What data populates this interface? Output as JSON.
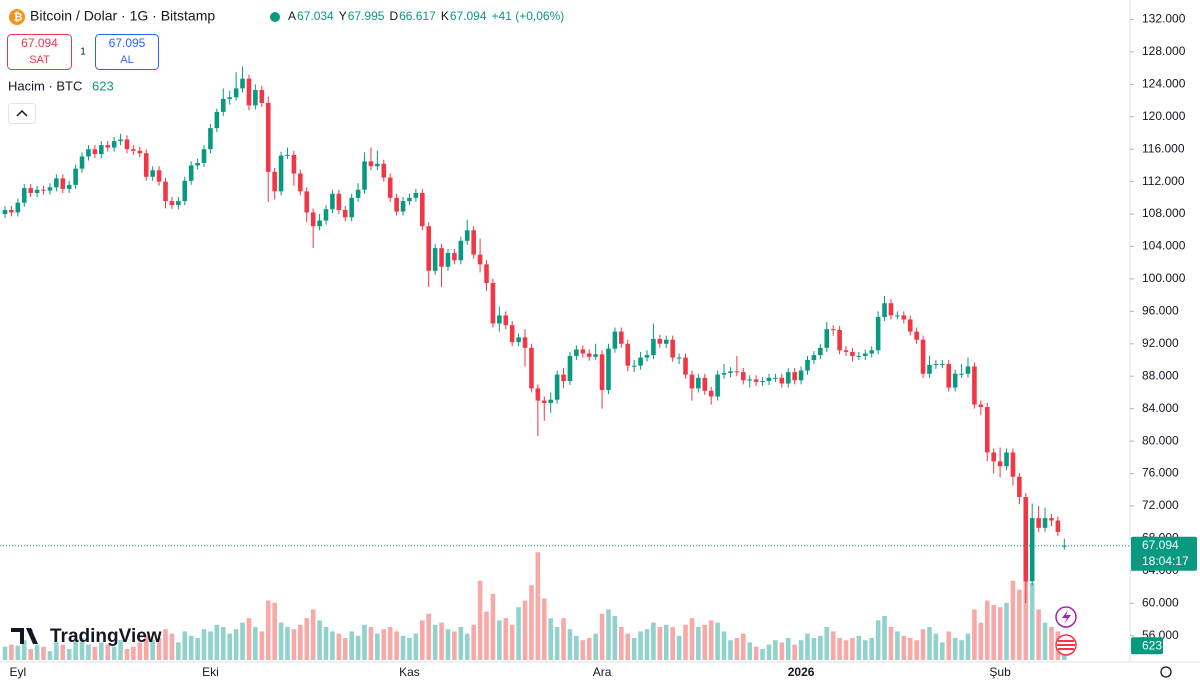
{
  "header": {
    "title": "Bitcoin / Dolar · 1G · Bitstamp",
    "ohlc": [
      {
        "key": "A",
        "value": "67.034"
      },
      {
        "key": "Y",
        "value": "67.995"
      },
      {
        "key": "D",
        "value": "66.617"
      },
      {
        "key": "K",
        "value": "67.094"
      }
    ],
    "change": "+41 (+0,06%)",
    "sell": {
      "price": "67.094",
      "label": "SAT"
    },
    "spread": "1",
    "buy": {
      "price": "67.095",
      "label": "AL"
    },
    "volume_label": "Hacim · BTC",
    "volume_value": "623"
  },
  "branding": "TradingView",
  "chart_data": {
    "type": "candlestick",
    "open": [
      108000,
      108500,
      108200,
      109400,
      111200,
      110600,
      111000,
      110900,
      111300,
      112400,
      111100,
      111600,
      113600,
      115100,
      116000,
      115400,
      116500,
      116200,
      117000,
      117200,
      116000,
      115800,
      115500,
      112600,
      113400,
      112000,
      109600,
      109100,
      109600,
      112100,
      114000,
      114300,
      116000,
      118600,
      120600,
      122200,
      122400,
      123500,
      124700,
      121400,
      123300,
      121700,
      113200,
      110800,
      115200,
      115300,
      113000,
      110800,
      108200,
      106500,
      107200,
      108600,
      110500,
      108500,
      107600,
      110000,
      111000,
      114500,
      113900,
      114200,
      112500,
      110000,
      108300,
      109600,
      110000,
      110600,
      106500,
      101000,
      103800,
      101500,
      103200,
      102300,
      104700,
      106000,
      103000,
      101800,
      99500,
      94500,
      95500,
      94300,
      92200,
      92800,
      91500,
      86500,
      85000,
      84700,
      85100,
      88200,
      87400,
      90500,
      91300,
      90800,
      90400,
      90700,
      86300,
      91400,
      93500,
      92000,
      89300,
      89300,
      90300,
      90600,
      92600,
      92000,
      92500,
      90300,
      90300,
      88200,
      86500,
      87800,
      86200,
      85500,
      88200,
      88400,
      88600,
      88500,
      87500,
      87600,
      87300,
      87400,
      87800,
      87800,
      87100,
      88500,
      87500,
      88700,
      90000,
      90600,
      91500,
      93800,
      93700,
      91200,
      91000,
      90500,
      90500,
      90800,
      91200,
      95300,
      97000,
      95500,
      95500,
      95000,
      93500,
      92500,
      88300,
      89400,
      89500,
      89500,
      86600,
      88300,
      88300,
      89200,
      84500,
      84200,
      78600,
      77500,
      76900,
      78600,
      75600,
      73100,
      62700,
      70500,
      69300,
      70500,
      70200,
      67034
    ],
    "high": [
      109000,
      109000,
      109900,
      111700,
      111700,
      111500,
      111500,
      111800,
      112900,
      112900,
      112100,
      114100,
      115600,
      116500,
      116500,
      117000,
      117000,
      117500,
      117900,
      117700,
      116500,
      116300,
      116000,
      113900,
      113900,
      112500,
      110100,
      110100,
      112600,
      114500,
      114800,
      116500,
      119100,
      121000,
      123500,
      123200,
      125500,
      126200,
      125200,
      124000,
      123800,
      122500,
      113700,
      115700,
      116200,
      115800,
      113500,
      111300,
      108700,
      108000,
      109100,
      111000,
      111000,
      109000,
      110500,
      111800,
      115600,
      116200,
      115800,
      114700,
      113000,
      110500,
      110100,
      110500,
      111100,
      111100,
      107000,
      104300,
      104300,
      103700,
      103700,
      105200,
      107300,
      106500,
      105000,
      102300,
      100000,
      96600,
      96000,
      94800,
      93300,
      93800,
      92000,
      87000,
      85500,
      86000,
      88700,
      89000,
      91000,
      91800,
      91800,
      91300,
      92000,
      91200,
      92000,
      94000,
      94000,
      92500,
      90000,
      91000,
      91200,
      94500,
      93100,
      93000,
      93000,
      90800,
      90800,
      88700,
      88300,
      88300,
      86700,
      88700,
      89500,
      89100,
      90500,
      89000,
      88100,
      88100,
      87900,
      88300,
      88300,
      88300,
      89000,
      89000,
      89200,
      90500,
      91100,
      92000,
      94700,
      94300,
      94200,
      91700,
      91500,
      91000,
      91300,
      91700,
      96000,
      97900,
      97500,
      96000,
      96000,
      95500,
      94000,
      93000,
      90500,
      90000,
      90000,
      90000,
      88800,
      89500,
      90300,
      89700,
      85000,
      84700,
      79100,
      79200,
      79100,
      79100,
      76100,
      73600,
      72300,
      72000,
      71800,
      71000,
      70700,
      67995
    ],
    "low": [
      107500,
      107700,
      107700,
      108900,
      110100,
      110100,
      110400,
      110400,
      110800,
      110600,
      110600,
      111100,
      113100,
      114600,
      114900,
      114900,
      115700,
      115700,
      116500,
      115500,
      115300,
      115000,
      112100,
      112100,
      111500,
      108700,
      108600,
      108600,
      109100,
      111600,
      113500,
      113800,
      115500,
      118100,
      120100,
      121500,
      122000,
      123000,
      120800,
      120900,
      121200,
      109500,
      109800,
      110300,
      114800,
      111500,
      110300,
      107000,
      103800,
      106000,
      106700,
      108100,
      108000,
      107100,
      107100,
      109500,
      110500,
      113400,
      113400,
      112000,
      109500,
      107800,
      107800,
      109100,
      109500,
      106000,
      99000,
      100500,
      99000,
      101000,
      101800,
      101800,
      104200,
      102500,
      100800,
      98500,
      94000,
      93500,
      93800,
      91700,
      91700,
      89200,
      86000,
      80600,
      82500,
      83500,
      84600,
      86500,
      86900,
      90000,
      90300,
      89900,
      90000,
      84000,
      85800,
      90900,
      91500,
      88600,
      88500,
      88800,
      89800,
      90100,
      91500,
      91500,
      89800,
      89500,
      87700,
      85000,
      86000,
      85700,
      84500,
      85000,
      87700,
      87900,
      88000,
      87000,
      86600,
      86800,
      86800,
      86900,
      87300,
      86600,
      86600,
      87000,
      87000,
      88200,
      89500,
      90100,
      91000,
      93000,
      90700,
      90500,
      89800,
      90000,
      90000,
      90300,
      90700,
      94800,
      95000,
      95000,
      94500,
      93000,
      92000,
      87800,
      87800,
      88900,
      89000,
      86100,
      86100,
      87800,
      87800,
      84000,
      83200,
      77500,
      76000,
      75500,
      76400,
      74500,
      72200,
      60000,
      62200,
      68800,
      68800,
      69500,
      68300,
      66617
    ],
    "close": [
      108500,
      108200,
      109400,
      111200,
      110600,
      111000,
      110900,
      111300,
      112400,
      111100,
      111600,
      113600,
      115100,
      116000,
      115400,
      116500,
      116200,
      117000,
      117200,
      116000,
      115800,
      115500,
      112600,
      113400,
      112000,
      109600,
      109100,
      109600,
      112100,
      114000,
      114300,
      116000,
      118600,
      120600,
      122200,
      122400,
      123500,
      124700,
      121400,
      123300,
      121700,
      113200,
      110800,
      115200,
      115300,
      113000,
      110800,
      108200,
      106500,
      107200,
      108600,
      110500,
      108500,
      107600,
      110000,
      111000,
      114500,
      113900,
      114200,
      112500,
      110000,
      108300,
      109600,
      110000,
      110600,
      106500,
      101000,
      103800,
      101500,
      103200,
      102300,
      104700,
      106000,
      103000,
      101800,
      99500,
      94500,
      95500,
      94300,
      92200,
      92800,
      91500,
      86500,
      85000,
      84700,
      85100,
      88200,
      87400,
      90500,
      91300,
      90800,
      90400,
      90700,
      86300,
      91400,
      93500,
      92000,
      89300,
      89300,
      90300,
      90600,
      92600,
      92000,
      92500,
      90300,
      90300,
      88200,
      86500,
      87800,
      86200,
      85500,
      88200,
      88400,
      88600,
      88500,
      87500,
      87600,
      87300,
      87400,
      87800,
      87800,
      87100,
      88500,
      87500,
      88700,
      90000,
      90600,
      91500,
      93800,
      93700,
      91200,
      91000,
      90500,
      90500,
      90800,
      91200,
      95300,
      97000,
      95500,
      95500,
      95000,
      93500,
      92500,
      88300,
      89400,
      89500,
      89500,
      86600,
      88300,
      88300,
      89200,
      84500,
      84200,
      78600,
      77500,
      76900,
      78600,
      75600,
      73100,
      62700,
      70500,
      69300,
      70500,
      70200,
      68800,
      67094
    ],
    "volume": [
      600,
      700,
      650,
      900,
      500,
      700,
      600,
      400,
      800,
      700,
      500,
      900,
      1000,
      700,
      600,
      800,
      700,
      600,
      900,
      500,
      600,
      800,
      1100,
      900,
      1000,
      1400,
      1200,
      800,
      1300,
      1100,
      1000,
      1400,
      1300,
      1600,
      1500,
      1200,
      1400,
      1700,
      1900,
      1500,
      1300,
      2700,
      2600,
      1700,
      1500,
      1400,
      1600,
      1900,
      2300,
      1800,
      1500,
      1300,
      1200,
      1000,
      1300,
      1100,
      1600,
      1500,
      1200,
      1400,
      1500,
      1300,
      1100,
      1000,
      1200,
      1800,
      2100,
      1600,
      1700,
      1400,
      1300,
      1500,
      1200,
      1600,
      3600,
      2200,
      3000,
      1800,
      1900,
      1600,
      2400,
      2700,
      3400,
      4900,
      2800,
      1900,
      1500,
      1900,
      1400,
      1100,
      900,
      1000,
      1200,
      2100,
      2300,
      2000,
      1500,
      1200,
      1000,
      1300,
      1400,
      1700,
      1500,
      1600,
      1500,
      1100,
      1600,
      1900,
      1500,
      1600,
      1800,
      1700,
      1300,
      900,
      1000,
      1200,
      800,
      600,
      500,
      700,
      900,
      800,
      1000,
      700,
      900,
      1200,
      1000,
      1100,
      1500,
      1300,
      1000,
      900,
      1000,
      1100,
      900,
      1000,
      1800,
      2000,
      1500,
      1300,
      1100,
      1000,
      900,
      1400,
      1500,
      1200,
      800,
      1300,
      1000,
      900,
      1200,
      2300,
      1700,
      2700,
      2500,
      2400,
      2600,
      3600,
      3200,
      4000,
      3500,
      2300,
      1700,
      1500,
      1300,
      623
    ],
    "volume_lim": [
      0,
      5000
    ],
    "ylim": [
      53000,
      134400
    ],
    "yticks": [
      {
        "value": 56000,
        "label": "56.000"
      },
      {
        "value": 60000,
        "label": "60.000"
      },
      {
        "value": 64000,
        "label": "64.000"
      },
      {
        "value": 68000,
        "label": "68.000"
      },
      {
        "value": 72000,
        "label": "72.000"
      },
      {
        "value": 76000,
        "label": "76.000"
      },
      {
        "value": 80000,
        "label": "80.000"
      },
      {
        "value": 84000,
        "label": "84.000"
      },
      {
        "value": 88000,
        "label": "88.000"
      },
      {
        "value": 92000,
        "label": "92.000"
      },
      {
        "value": 96000,
        "label": "96.000"
      },
      {
        "value": 100000,
        "label": "100.000"
      },
      {
        "value": 104000,
        "label": "104.000"
      },
      {
        "value": 108000,
        "label": "108.000"
      },
      {
        "value": 112000,
        "label": "112.000"
      },
      {
        "value": 116000,
        "label": "116.000"
      },
      {
        "value": 120000,
        "label": "120.000"
      },
      {
        "value": 124000,
        "label": "124.000"
      },
      {
        "value": 128000,
        "label": "128.000"
      },
      {
        "value": 132000,
        "label": "132.000"
      }
    ],
    "xlabels": [
      {
        "at": 2,
        "label": "Eyl"
      },
      {
        "at": 32,
        "label": "Eki"
      },
      {
        "at": 63,
        "label": "Kas"
      },
      {
        "at": 93,
        "label": "Ara"
      },
      {
        "at": 124,
        "label": "2026",
        "bold": true
      },
      {
        "at": 155,
        "label": "Şub"
      }
    ],
    "up_color": "#089981",
    "down_color": "#f23645",
    "up_volume_color": "#92d2cc",
    "down_volume_color": "#f7a9a7",
    "last_price": {
      "value": 67094,
      "label": "67.094"
    },
    "countdown": "18:04:17",
    "last_volume_label": "623"
  }
}
